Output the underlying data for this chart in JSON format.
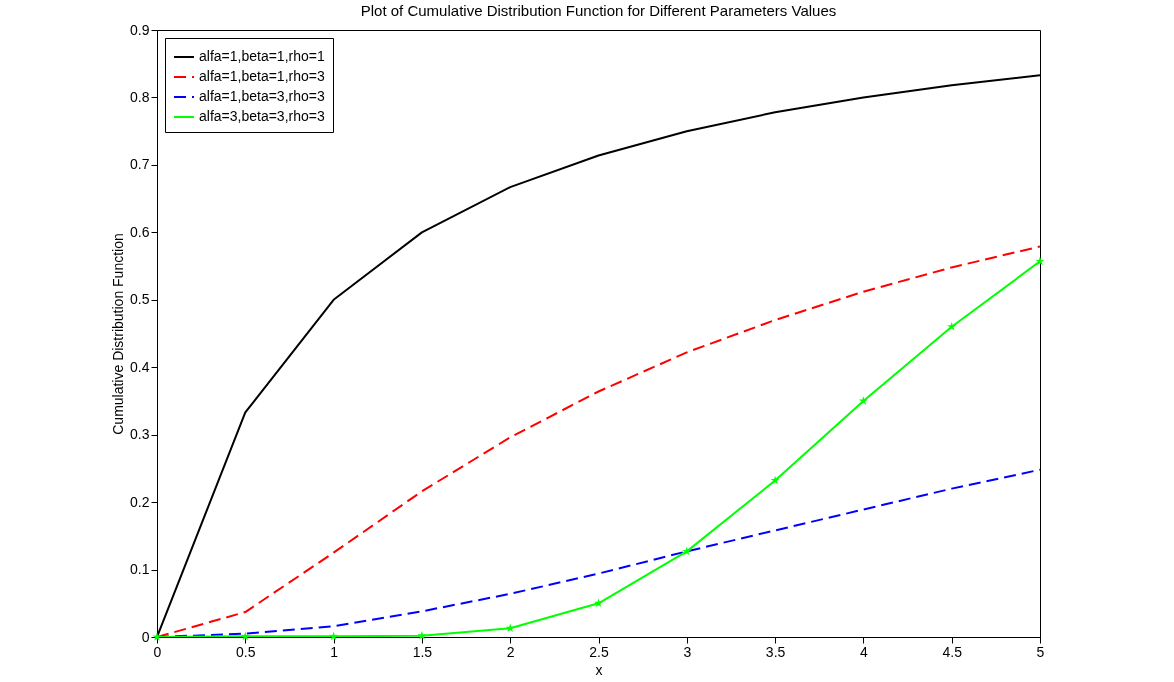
{
  "chart_data": {
    "type": "line",
    "title": "Plot of Cumulative Distribution Function for Different Parameters Values",
    "xlabel": "x",
    "ylabel": "Cumulative Distribution Function",
    "x": [
      0,
      0.5,
      1,
      1.5,
      2,
      2.5,
      3,
      3.5,
      4,
      4.5,
      5
    ],
    "xlim": [
      0,
      5
    ],
    "xticks": [
      0,
      0.5,
      1,
      1.5,
      2,
      2.5,
      3,
      3.5,
      4,
      4.5,
      5
    ],
    "ylim": [
      0,
      0.9
    ],
    "yticks": [
      0,
      0.1,
      0.2,
      0.3,
      0.4,
      0.5,
      0.6,
      0.7,
      0.8,
      0.9
    ],
    "legend": "top left",
    "series": [
      {
        "name": "alfa=1,beta=1,rho=1",
        "color": "#000000",
        "line_style": "solid",
        "values": [
          0,
          0.333,
          0.5,
          0.6,
          0.667,
          0.714,
          0.75,
          0.778,
          0.8,
          0.818,
          0.833
        ]
      },
      {
        "name": "alfa=1,beta=1,rho=3",
        "color": "#ff0000",
        "line_style": "dashed",
        "values": [
          0,
          0.037,
          0.125,
          0.216,
          0.296,
          0.364,
          0.422,
          0.47,
          0.512,
          0.548,
          0.579
        ]
      },
      {
        "name": "alfa=1,beta=3,rho=3",
        "color": "#0000ff",
        "line_style": "dashed",
        "values": [
          0,
          0.005,
          0.016,
          0.038,
          0.064,
          0.094,
          0.127,
          0.158,
          0.189,
          0.22,
          0.248
        ]
      },
      {
        "name": "alfa=3,beta=3,rho=3",
        "color": "#00ff00",
        "line_style": "solid",
        "marker": "star",
        "values": [
          0,
          0.001,
          0.001,
          0.002,
          0.013,
          0.05,
          0.127,
          0.232,
          0.35,
          0.46,
          0.557
        ]
      }
    ]
  }
}
